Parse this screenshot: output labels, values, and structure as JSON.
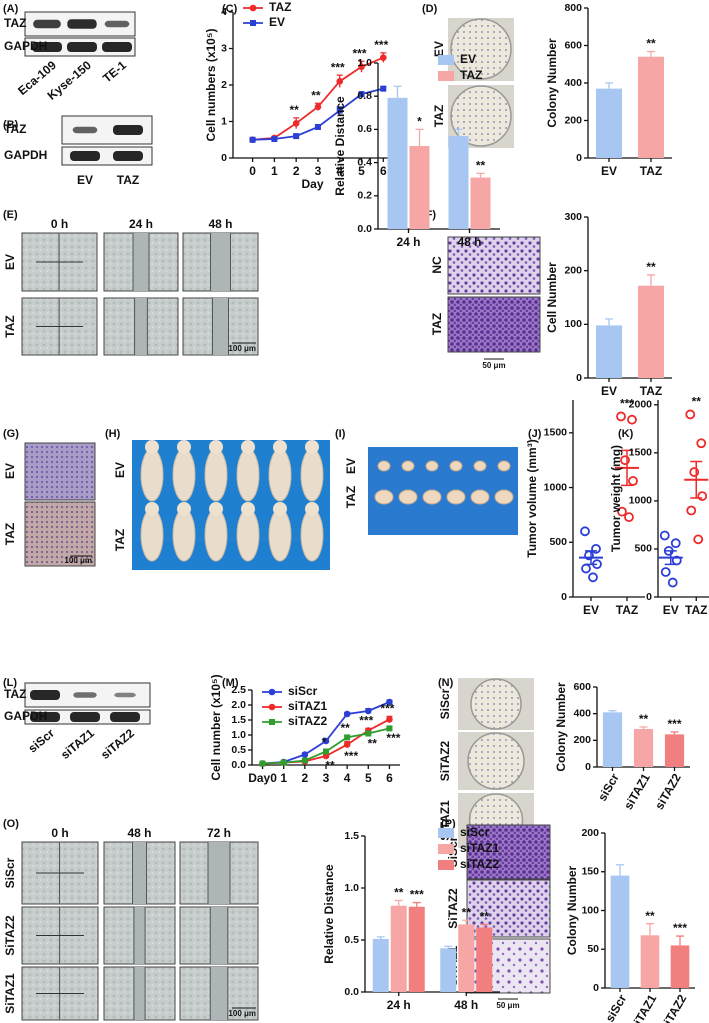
{
  "figure": {
    "panel_labels": [
      "(A)",
      "(B)",
      "(C)",
      "(D)",
      "(E)",
      "(F)",
      "(G)",
      "(H)",
      "(I)",
      "(J)",
      "(K)",
      "(L)",
      "(M)",
      "(N)",
      "(O)",
      "(P)"
    ],
    "A": {
      "bands": [
        "TAZ",
        "GAPDH"
      ],
      "lanes": [
        "Eca-109",
        "Kyse-150",
        "TE-1"
      ]
    },
    "B": {
      "bands": [
        "TAZ",
        "GAPDH"
      ],
      "lanes": [
        "EV",
        "TAZ"
      ]
    },
    "D": {
      "rows": [
        "EV",
        "TAZ"
      ]
    },
    "E": {
      "columns": [
        "0 h",
        "24 h",
        "48 h"
      ],
      "rows": [
        "EV",
        "TAZ"
      ],
      "scale": "100 μm"
    },
    "F": {
      "rows": [
        "NC",
        "TAZ"
      ],
      "scale": "50 μm"
    },
    "G": {
      "rows": [
        "EV",
        "TAZ"
      ],
      "scale": "100 μm"
    },
    "H": {
      "rows": [
        "EV",
        "TAZ"
      ]
    },
    "I": {
      "rows": [
        "EV",
        "TAZ"
      ]
    },
    "L": {
      "bands": [
        "TAZ",
        "GAPDH"
      ],
      "lanes": [
        "siScr",
        "siTAZ1",
        "siTAZ2"
      ]
    },
    "N": {
      "rows": [
        "SiScr",
        "SiTAZ2",
        "SiTAZ1"
      ]
    },
    "O": {
      "columns": [
        "0 h",
        "48 h",
        "72 h"
      ],
      "rows": [
        "SiScr",
        "SiTAZ2",
        "SiTAZ1"
      ],
      "scale": "100 μm"
    },
    "P": {
      "rows": [
        "SiScr",
        "SiTAZ2",
        "SiTAZ1"
      ],
      "scale": "50 μm"
    }
  },
  "chart_data": [
    {
      "type": "line",
      "xlabel": "Day",
      "ylabel": "Cell numbers (x10⁵)",
      "x": [
        0,
        1,
        2,
        3,
        4,
        5,
        6
      ],
      "xlim": [
        -0.9,
        6.4
      ],
      "xticks": [
        0,
        1,
        2,
        3,
        4,
        5,
        6
      ],
      "ylim": [
        0,
        4
      ],
      "yticks": [
        0,
        1,
        2,
        3,
        4
      ],
      "legend": "top-left",
      "series": [
        {
          "name": "TAZ",
          "color": "#ee2a2a",
          "marker": "circle",
          "values": [
            0.5,
            0.55,
            0.95,
            1.4,
            2.1,
            2.5,
            2.75
          ],
          "errors": [
            0.03,
            0.04,
            0.15,
            0.1,
            0.17,
            0.15,
            0.13
          ],
          "sig": [
            null,
            null,
            "**",
            "**",
            "***",
            "***",
            "***"
          ]
        },
        {
          "name": "EV",
          "color": "#2b3fd6",
          "marker": "square",
          "values": [
            0.5,
            0.52,
            0.6,
            0.85,
            1.3,
            1.75,
            1.9
          ],
          "errors": [
            0.03,
            0.03,
            0.04,
            0.05,
            0.1,
            0.06,
            0.05
          ],
          "sig": [
            null,
            null,
            null,
            null,
            null,
            null,
            null
          ]
        }
      ]
    },
    {
      "type": "bar",
      "ylabel": "Colony Number",
      "categories": [
        "EV",
        "TAZ"
      ],
      "values": [
        370,
        540
      ],
      "errors": [
        30,
        28
      ],
      "colors": [
        "#a7c7f2",
        "#f7a6a6"
      ],
      "sig": [
        null,
        "**"
      ],
      "ylim": [
        0,
        800
      ],
      "yticks": [
        0,
        200,
        400,
        600,
        800
      ]
    },
    {
      "type": "bar",
      "ylabel": "Relative Distance",
      "categories": [
        "24 h",
        "48 h"
      ],
      "legend": "top-right",
      "ylim": [
        0,
        1.0
      ],
      "yticks": [
        {
          "value": 0,
          "label": "0.0"
        },
        0.2,
        0.4,
        0.6,
        0.8,
        {
          "value": 1,
          "label": "1.0"
        }
      ],
      "series": [
        {
          "name": "EV",
          "color": "#a7c7f2",
          "values": [
            0.79,
            0.56
          ],
          "errors": [
            0.07,
            0.04
          ],
          "sig": [
            null,
            null
          ]
        },
        {
          "name": "TAZ",
          "color": "#f7a6a6",
          "values": [
            0.5,
            0.31
          ],
          "errors": [
            0.1,
            0.025
          ],
          "sig": [
            "*",
            "**"
          ]
        }
      ]
    },
    {
      "type": "bar",
      "ylabel": "Cell Number",
      "categories": [
        "EV",
        "TAZ"
      ],
      "values": [
        98,
        172
      ],
      "errors": [
        12,
        20
      ],
      "colors": [
        "#a7c7f2",
        "#f7a6a6"
      ],
      "sig": [
        null,
        "**"
      ],
      "ylim": [
        0,
        300
      ],
      "yticks": [
        0,
        100,
        200,
        300
      ]
    },
    {
      "type": "scatter",
      "ylabel": "Tumor volume (mm³)",
      "categories": [
        "EV",
        "TAZ"
      ],
      "sig": [
        null,
        "***"
      ],
      "ylim": [
        0,
        1800
      ],
      "yticks": [
        0,
        500,
        1000,
        1500
      ],
      "groups": [
        {
          "color": "#2b3fd6",
          "values": [
            600,
            440,
            380,
            300,
            260,
            180
          ],
          "mean": 360,
          "sem": 62
        },
        {
          "color": "#ee2a2a",
          "values": [
            1650,
            1620,
            1250,
            1060,
            780,
            730
          ],
          "mean": 1180,
          "sem": 160
        }
      ]
    },
    {
      "type": "scatter",
      "ylabel": "Tumor weight (mg)",
      "categories": [
        "EV",
        "TAZ"
      ],
      "sig": [
        null,
        "**"
      ],
      "ylim": [
        0,
        2050
      ],
      "yticks": [
        0,
        500,
        1000,
        1500,
        2000
      ],
      "groups": [
        {
          "color": "#2b3fd6",
          "values": [
            640,
            560,
            480,
            380,
            260,
            150
          ],
          "mean": 410,
          "sem": 70
        },
        {
          "color": "#ee2a2a",
          "values": [
            1900,
            1600,
            1300,
            1050,
            900,
            600
          ],
          "mean": 1220,
          "sem": 190
        }
      ]
    },
    {
      "type": "line",
      "ylabel": "Cell number (x10⁵)",
      "categories": [
        "Day0",
        "1",
        "2",
        "3",
        "4",
        "5",
        "6"
      ],
      "legend": "top-left",
      "ylim": [
        0,
        2.5
      ],
      "yticks": [
        {
          "value": 0,
          "label": "0.0"
        },
        0.5,
        {
          "value": 1,
          "label": "1.0"
        },
        1.5,
        {
          "value": 2,
          "label": "2.0"
        },
        2.5
      ],
      "series": [
        {
          "name": "siScr",
          "color": "#2b3fd6",
          "marker": "circle",
          "values": [
            0.05,
            0.1,
            0.35,
            0.8,
            1.7,
            1.8,
            2.1
          ],
          "errors": [
            0.01,
            0.02,
            0.05,
            0.08,
            0.05,
            0.08,
            0.06
          ],
          "sig": [
            null,
            null,
            null,
            null,
            null,
            null,
            null
          ]
        },
        {
          "name": "siTAZ1",
          "color": "#ee2a2a",
          "marker": "circle",
          "values": [
            0.05,
            0.08,
            0.12,
            0.3,
            0.68,
            1.15,
            1.52
          ],
          "errors": [
            0.01,
            0.01,
            0.02,
            0.04,
            0.1,
            0.07,
            0.1
          ],
          "sig": [
            null,
            null,
            null,
            "**",
            "***",
            "***",
            "***"
          ]
        },
        {
          "name": "siTAZ2",
          "color": "#2e9e2e",
          "marker": "square",
          "values": [
            0.05,
            0.08,
            0.15,
            0.45,
            0.92,
            1.05,
            1.22
          ],
          "errors": [
            0.01,
            0.01,
            0.02,
            0.05,
            0.05,
            0.06,
            0.05
          ],
          "sig": [
            null,
            null,
            null,
            "*",
            "**",
            "**",
            "***"
          ]
        }
      ]
    },
    {
      "type": "bar",
      "ylabel": "Colony Number",
      "categories": [
        "siScr",
        "siTAZ1",
        "siTAZ2"
      ],
      "rotate_labels": true,
      "values": [
        410,
        285,
        245
      ],
      "errors": [
        12,
        15,
        18
      ],
      "colors": [
        "#a7c7f2",
        "#f7a6a6",
        "#f27f7f"
      ],
      "sig": [
        null,
        "**",
        "***"
      ],
      "ylim": [
        0,
        600
      ],
      "yticks": [
        0,
        200,
        400,
        600
      ]
    },
    {
      "type": "bar",
      "ylabel": "Relative Distance",
      "categories": [
        "24 h",
        "48 h"
      ],
      "legend": "top-right",
      "ylim": [
        0,
        1.5
      ],
      "yticks": [
        {
          "value": 0,
          "label": "0.0"
        },
        0.5,
        {
          "value": 1,
          "label": "1.0"
        },
        1.5
      ],
      "series": [
        {
          "name": "siScr",
          "color": "#a7c7f2",
          "values": [
            0.51,
            0.42
          ],
          "errors": [
            0.02,
            0.02
          ],
          "sig": [
            null,
            null
          ]
        },
        {
          "name": "siTAZ1",
          "color": "#f7a6a6",
          "values": [
            0.83,
            0.65
          ],
          "errors": [
            0.05,
            0.04
          ],
          "sig": [
            "**",
            "**"
          ]
        },
        {
          "name": "siTAZ2",
          "color": "#f27f7f",
          "values": [
            0.82,
            0.62
          ],
          "errors": [
            0.04,
            0.03
          ],
          "sig": [
            "***",
            "**"
          ]
        }
      ]
    },
    {
      "type": "bar",
      "ylabel": "Colony Number",
      "categories": [
        "siScr",
        "siTAZ1",
        "siTAZ2"
      ],
      "rotate_labels": true,
      "values": [
        145,
        68,
        55
      ],
      "errors": [
        14,
        15,
        12
      ],
      "colors": [
        "#a7c7f2",
        "#f7a6a6",
        "#f27f7f"
      ],
      "sig": [
        null,
        "**",
        "***"
      ],
      "ylim": [
        0,
        200
      ],
      "yticks": [
        0,
        50,
        100,
        150,
        200
      ]
    }
  ]
}
